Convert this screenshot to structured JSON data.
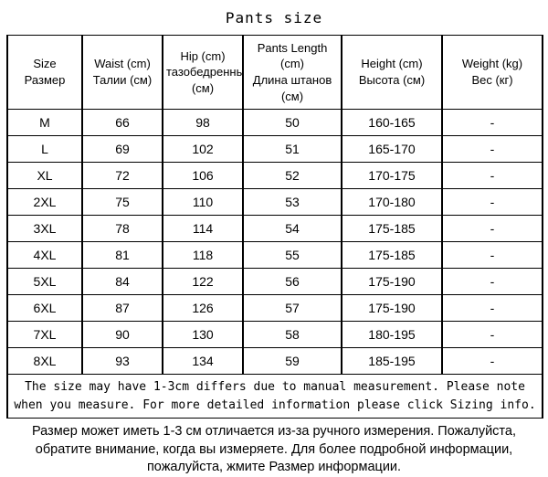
{
  "colors": {
    "background": "#ffffff",
    "text": "#000000",
    "border": "#000000"
  },
  "chart_data": {
    "type": "table",
    "title": "Pants size",
    "columns": [
      {
        "en": "Size",
        "ru": "Размер"
      },
      {
        "en": "Waist (cm)",
        "ru": "Талии (см)"
      },
      {
        "en": "Hip (cm)",
        "ru": "тазобедренный (см)"
      },
      {
        "en": "Pants Length (cm)",
        "ru": "Длина штанов (см)"
      },
      {
        "en": "Height (cm)",
        "ru": "Высота (см)"
      },
      {
        "en": "Weight (kg)",
        "ru": "Вес (кг)"
      }
    ],
    "rows": [
      [
        "M",
        "66",
        "98",
        "50",
        "160-165",
        "-"
      ],
      [
        "L",
        "69",
        "102",
        "51",
        "165-170",
        "-"
      ],
      [
        "XL",
        "72",
        "106",
        "52",
        "170-175",
        "-"
      ],
      [
        "2XL",
        "75",
        "110",
        "53",
        "170-180",
        "-"
      ],
      [
        "3XL",
        "78",
        "114",
        "54",
        "175-185",
        "-"
      ],
      [
        "4XL",
        "81",
        "118",
        "55",
        "175-185",
        "-"
      ],
      [
        "5XL",
        "84",
        "122",
        "56",
        "175-190",
        "-"
      ],
      [
        "6XL",
        "87",
        "126",
        "57",
        "175-190",
        "-"
      ],
      [
        "7XL",
        "90",
        "130",
        "58",
        "180-195",
        "-"
      ],
      [
        "8XL",
        "93",
        "134",
        "59",
        "185-195",
        "-"
      ]
    ],
    "notes": {
      "en": "The size may have 1-3cm differs due to manual measurement. Please note when you measure. For more detailed information please click Sizing info.",
      "ru": "Размер может иметь 1-3 см отличается из-за ручного измерения. Пожалуйста, обратите внимание, когда вы измеряете. Для более подробной информации, пожалуйста, жмите Размер информации."
    }
  }
}
